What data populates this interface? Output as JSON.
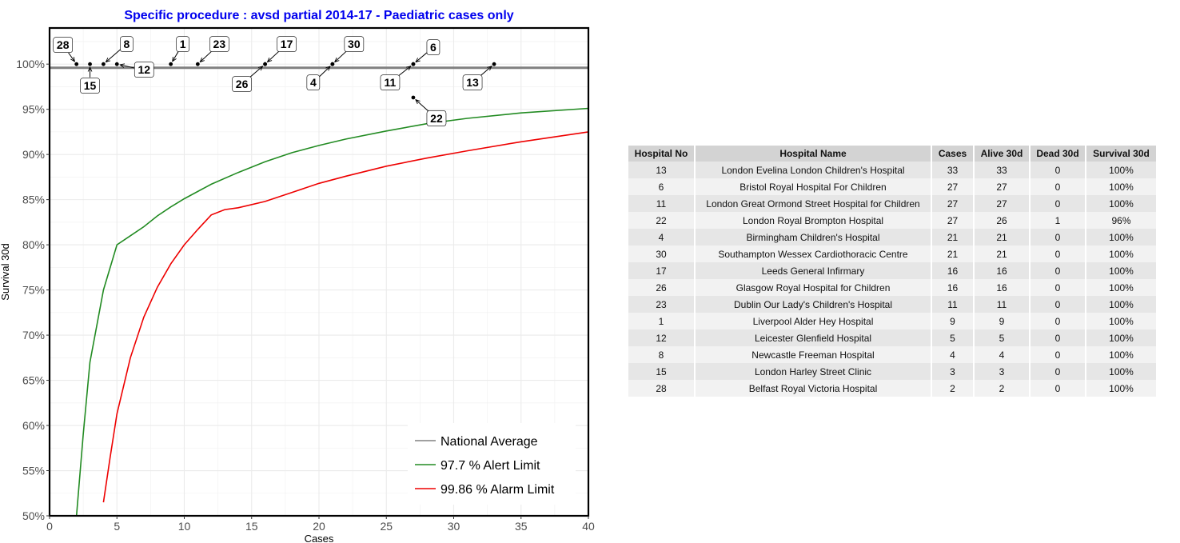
{
  "chart_data": {
    "type": "scatter",
    "title": "Specific procedure : avsd partial 2014-17 - Paediatric cases only",
    "xlabel": "Cases",
    "ylabel": "Survival 30d",
    "xlim": [
      0,
      40
    ],
    "ylim": [
      50,
      104
    ],
    "x_ticks": [
      0,
      5,
      10,
      15,
      20,
      25,
      30,
      35,
      40
    ],
    "y_ticks": [
      50,
      55,
      60,
      65,
      70,
      75,
      80,
      85,
      90,
      95,
      100
    ],
    "y_tick_suffix": "%",
    "grid": true,
    "legend_position": "bottom-right",
    "national_average": 99.6,
    "series": [
      {
        "name": "97.7 %  Alert Limit",
        "color": "#228b22",
        "x": [
          2,
          2.5,
          3,
          4,
          5,
          6,
          7,
          8,
          9,
          10,
          12,
          14,
          16,
          18,
          20,
          22,
          25,
          28,
          31,
          35,
          40
        ],
        "y": [
          50,
          59,
          67,
          75,
          80,
          81,
          82,
          83.2,
          84.2,
          85.1,
          86.7,
          88,
          89.2,
          90.2,
          91,
          91.7,
          92.6,
          93.4,
          94,
          94.6,
          95.1
        ]
      },
      {
        "name": "99.86 %  Alarm Limit",
        "color": "#ee0000",
        "x": [
          4,
          4.5,
          5,
          6,
          7,
          8,
          9,
          10,
          11,
          12,
          13,
          14,
          16,
          18,
          20,
          22,
          25,
          28,
          31,
          35,
          40
        ],
        "y": [
          51.5,
          56.5,
          61.3,
          67.5,
          72,
          75.3,
          77.9,
          80,
          81.7,
          83.3,
          83.9,
          84.1,
          84.8,
          85.8,
          86.8,
          87.6,
          88.7,
          89.6,
          90.4,
          91.4,
          92.5
        ]
      }
    ],
    "legend_entries": [
      {
        "name": "National Average",
        "color": "#808080"
      },
      {
        "name": "97.7 %  Alert Limit",
        "color": "#228b22"
      },
      {
        "name": "99.86 %  Alarm Limit",
        "color": "#ee0000"
      }
    ],
    "points": [
      {
        "label": "28",
        "x": 2,
        "y": 100
      },
      {
        "label": "15",
        "x": 3,
        "y": 100
      },
      {
        "label": "8",
        "x": 4,
        "y": 100
      },
      {
        "label": "12",
        "x": 5,
        "y": 100
      },
      {
        "label": "1",
        "x": 9,
        "y": 100
      },
      {
        "label": "23",
        "x": 11,
        "y": 100
      },
      {
        "label": "17",
        "x": 16,
        "y": 100
      },
      {
        "label": "26",
        "x": 16,
        "y": 100
      },
      {
        "label": "4",
        "x": 21,
        "y": 100
      },
      {
        "label": "30",
        "x": 21,
        "y": 100
      },
      {
        "label": "11",
        "x": 27,
        "y": 100
      },
      {
        "label": "6",
        "x": 27,
        "y": 100
      },
      {
        "label": "22",
        "x": 27,
        "y": 96.3
      },
      {
        "label": "13",
        "x": 33,
        "y": 100
      }
    ]
  },
  "table": {
    "columns": [
      "Hospital No",
      "Hospital Name",
      "Cases",
      "Alive 30d",
      "Dead 30d",
      "Survival 30d"
    ],
    "rows": [
      [
        "13",
        "London Evelina London Children's Hospital",
        "33",
        "33",
        "0",
        "100%"
      ],
      [
        "6",
        "Bristol Royal Hospital For Children",
        "27",
        "27",
        "0",
        "100%"
      ],
      [
        "11",
        "London Great Ormond Street Hospital for Children",
        "27",
        "27",
        "0",
        "100%"
      ],
      [
        "22",
        "London Royal Brompton Hospital",
        "27",
        "26",
        "1",
        "96%"
      ],
      [
        "4",
        "Birmingham Children's Hospital",
        "21",
        "21",
        "0",
        "100%"
      ],
      [
        "30",
        "Southampton Wessex Cardiothoracic Centre",
        "21",
        "21",
        "0",
        "100%"
      ],
      [
        "17",
        "Leeds General Infirmary",
        "16",
        "16",
        "0",
        "100%"
      ],
      [
        "26",
        "Glasgow Royal Hospital for Children",
        "16",
        "16",
        "0",
        "100%"
      ],
      [
        "23",
        "Dublin Our Lady's Children's Hospital",
        "11",
        "11",
        "0",
        "100%"
      ],
      [
        "1",
        "Liverpool Alder Hey Hospital",
        "9",
        "9",
        "0",
        "100%"
      ],
      [
        "12",
        "Leicester Glenfield Hospital",
        "5",
        "5",
        "0",
        "100%"
      ],
      [
        "8",
        "Newcastle Freeman Hospital",
        "4",
        "4",
        "0",
        "100%"
      ],
      [
        "15",
        "London Harley Street Clinic",
        "3",
        "3",
        "0",
        "100%"
      ],
      [
        "28",
        "Belfast Royal Victoria Hospital",
        "2",
        "2",
        "0",
        "100%"
      ]
    ]
  }
}
